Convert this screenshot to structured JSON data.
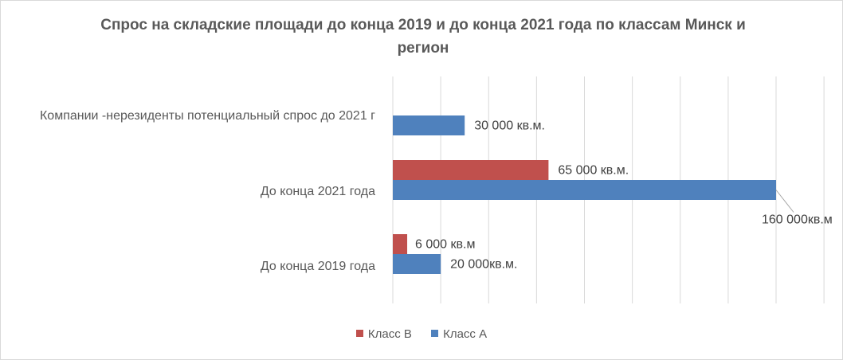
{
  "chart_data": {
    "type": "bar",
    "orientation": "horizontal",
    "title": "Спрос на складские площади до конца  2019 и до конца 2021 года по классам Минск и регион",
    "categories": [
      "Компании -нерезиденты потенциальный спрос  до 2021 г",
      "До конца 2021 года",
      "До конца 2019 года"
    ],
    "series": [
      {
        "name": "Класс В",
        "color": "#c0504d",
        "values": [
          null,
          65000,
          6000
        ],
        "data_labels": [
          "",
          "65 000 кв.м.",
          "6 000 кв.м"
        ]
      },
      {
        "name": "Класс А",
        "color": "#4f81bd",
        "values": [
          30000,
          160000,
          20000
        ],
        "data_labels": [
          "30 000 кв.м.",
          "160 000кв.м",
          "20 000кв.м."
        ]
      }
    ],
    "xlim": [
      0,
      180000
    ],
    "grid": true,
    "legend_position": "bottom"
  }
}
